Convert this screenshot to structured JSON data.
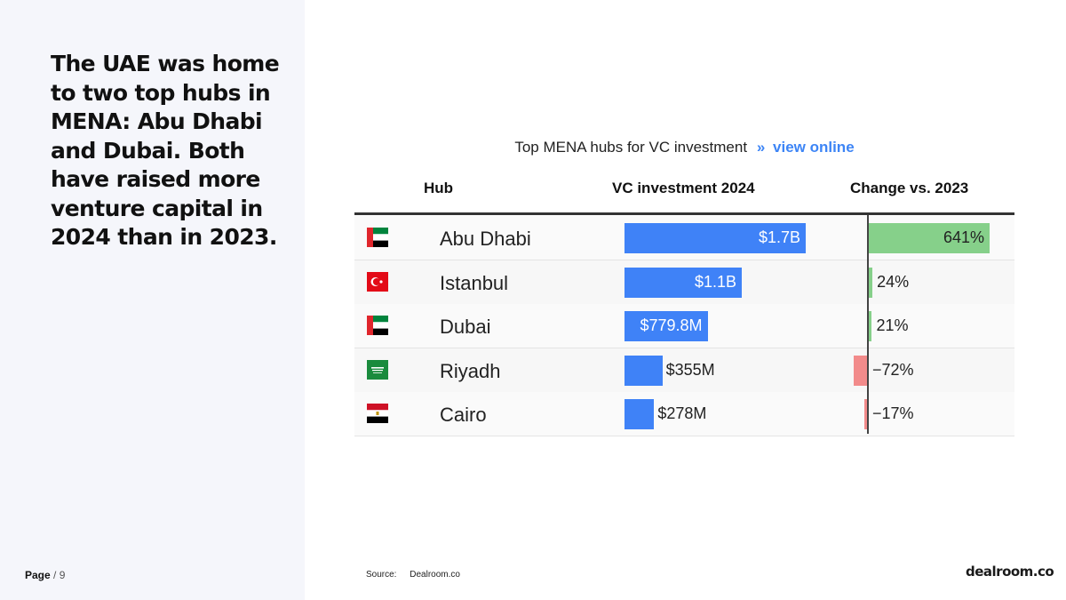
{
  "headline": "The UAE was home to two top hubs in MENA: Abu Dhabi and Dubai. Both have raised more venture capital in 2024 than in 2023.",
  "page": {
    "label": "Page",
    "sep": "/",
    "number": "9"
  },
  "source": {
    "label": "Source:",
    "value": "Dealroom.co"
  },
  "logo": "dealroom.co",
  "colors": {
    "vc_bar": "#3f82f7",
    "positive": "#86d08a",
    "negative": "#f28b8b",
    "link": "#3d85f6"
  },
  "chart_data": {
    "type": "table",
    "title": "Top MENA hubs for VC investment",
    "title_link": {
      "arrows": "»",
      "text": "view online"
    },
    "columns": [
      "Hub",
      "VC investment 2024",
      "Change vs. 2023"
    ],
    "rows": [
      {
        "hub": "Abu Dhabi",
        "flag": "uae-flag-icon",
        "vc_label": "$1.7B",
        "vc_value": 1.7,
        "change_label": "641%",
        "change": 641
      },
      {
        "hub": "Istanbul",
        "flag": "turkey-flag-icon",
        "vc_label": "$1.1B",
        "vc_value": 1.1,
        "change_label": "24%",
        "change": 24
      },
      {
        "hub": "Dubai",
        "flag": "uae-flag-icon",
        "vc_label": "$779.8M",
        "vc_value": 0.7798,
        "change_label": "21%",
        "change": 21
      },
      {
        "hub": "Riyadh",
        "flag": "saudi-flag-icon",
        "vc_label": "$355M",
        "vc_value": 0.355,
        "change_label": "−72%",
        "change": -72
      },
      {
        "hub": "Cairo",
        "flag": "egypt-flag-icon",
        "vc_label": "$278M",
        "vc_value": 0.278,
        "change_label": "−17%",
        "change": -17
      }
    ]
  }
}
